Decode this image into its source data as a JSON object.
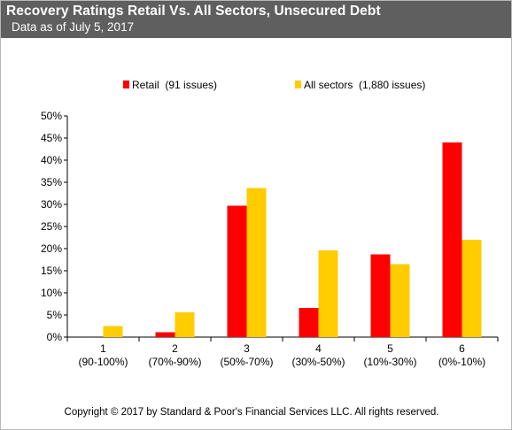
{
  "header": {
    "title": "Recovery Ratings Retail Vs. All Sectors, Unsecured Debt",
    "subtitle": "Data as of July 5, 2017"
  },
  "footer": {
    "copyright": "Copyright © 2017 by Standard & Poor's Financial Services LLC. All rights reserved."
  },
  "chart_data": {
    "type": "bar",
    "title": "Recovery Ratings Retail Vs. All Sectors, Unsecured Debt",
    "subtitle": "Data as of July 5, 2017",
    "categories": [
      "1",
      "2",
      "3",
      "4",
      "5",
      "6"
    ],
    "category_sublabels": [
      "(90-100%)",
      "(70%-90%)",
      "(50%-70%)",
      "(30%-50%)",
      "(10%-30%)",
      "(0%-10%)"
    ],
    "series": [
      {
        "name": "Retail  (91 issues)",
        "color": "#ff0000",
        "values": [
          0,
          1.1,
          29.7,
          6.6,
          18.7,
          44.0
        ]
      },
      {
        "name": "All sectors  (1,880 issues)",
        "color": "#ffcc00",
        "values": [
          2.5,
          5.6,
          33.7,
          19.6,
          16.5,
          22.0
        ]
      }
    ],
    "ylim": [
      0,
      50
    ],
    "ytick_step": 5,
    "ytick_format": "percent",
    "xlabel": "",
    "ylabel": "",
    "legend_position": "top",
    "grid": false
  }
}
